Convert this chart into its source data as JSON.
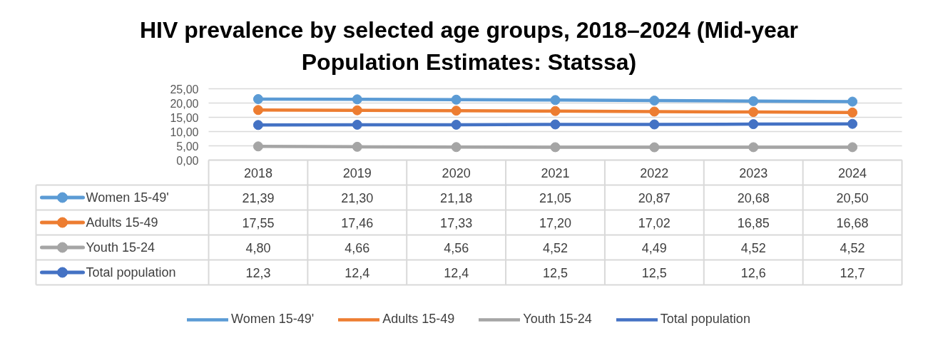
{
  "chart_data": {
    "type": "line",
    "title": "HIV prevalence by selected age groups, 2018–2024 (Mid-year Population Estimates: Statssa)",
    "categories": [
      "2018",
      "2019",
      "2020",
      "2021",
      "2022",
      "2023",
      "2024"
    ],
    "series": [
      {
        "name": "Women 15-49'",
        "color": "#5b9bd5",
        "values": [
          21.39,
          21.3,
          21.18,
          21.05,
          20.87,
          20.68,
          20.5
        ],
        "value_labels": [
          "21,39",
          "21,30",
          "21,18",
          "21,05",
          "20,87",
          "20,68",
          "20,50"
        ]
      },
      {
        "name": "Adults 15-49",
        "color": "#ed7d31",
        "values": [
          17.55,
          17.46,
          17.33,
          17.2,
          17.02,
          16.85,
          16.68
        ],
        "value_labels": [
          "17,55",
          "17,46",
          "17,33",
          "17,20",
          "17,02",
          "16,85",
          "16,68"
        ]
      },
      {
        "name": "Youth 15-24",
        "color": "#a5a5a5",
        "values": [
          4.8,
          4.66,
          4.56,
          4.52,
          4.49,
          4.52,
          4.52
        ],
        "value_labels": [
          "4,80",
          "4,66",
          "4,56",
          "4,52",
          "4,49",
          "4,52",
          "4,52"
        ]
      },
      {
        "name": "Total population",
        "color": "#4472c4",
        "values": [
          12.3,
          12.4,
          12.4,
          12.5,
          12.5,
          12.6,
          12.7
        ],
        "value_labels": [
          "12,3",
          "12,4",
          "12,4",
          "12,5",
          "12,5",
          "12,6",
          "12,7"
        ]
      }
    ],
    "ylim": [
      0,
      25
    ],
    "yticks": [
      {
        "value": 0,
        "label": "0,00"
      },
      {
        "value": 5,
        "label": "5,00"
      },
      {
        "value": 10,
        "label": "10,00"
      },
      {
        "value": 15,
        "label": "15,00"
      },
      {
        "value": 20,
        "label": "20,00"
      },
      {
        "value": 25,
        "label": "25,00"
      }
    ],
    "grid": "y",
    "legend": "bottom",
    "marker": "circle"
  }
}
